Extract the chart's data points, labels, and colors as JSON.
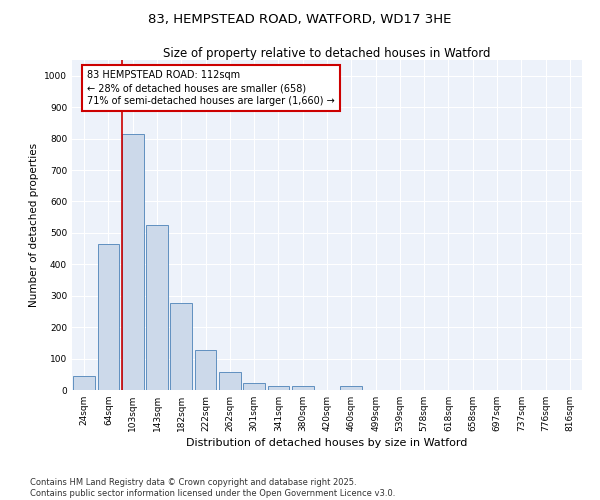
{
  "title": "83, HEMPSTEAD ROAD, WATFORD, WD17 3HE",
  "subtitle": "Size of property relative to detached houses in Watford",
  "xlabel": "Distribution of detached houses by size in Watford",
  "ylabel": "Number of detached properties",
  "bar_labels": [
    "24sqm",
    "64sqm",
    "103sqm",
    "143sqm",
    "182sqm",
    "222sqm",
    "262sqm",
    "301sqm",
    "341sqm",
    "380sqm",
    "420sqm",
    "460sqm",
    "499sqm",
    "539sqm",
    "578sqm",
    "618sqm",
    "658sqm",
    "697sqm",
    "737sqm",
    "776sqm",
    "816sqm"
  ],
  "bar_values": [
    46,
    465,
    815,
    525,
    278,
    127,
    57,
    22,
    14,
    14,
    0,
    12,
    0,
    0,
    0,
    0,
    0,
    0,
    0,
    0,
    0
  ],
  "bar_color": "#ccd9ea",
  "bar_edge_color": "#6090c0",
  "vline_color": "#cc0000",
  "annotation_line1": "83 HEMPSTEAD ROAD: 112sqm",
  "annotation_line2": "← 28% of detached houses are smaller (658)",
  "annotation_line3": "71% of semi-detached houses are larger (1,660) →",
  "annotation_box_color": "#cc0000",
  "ylim": [
    0,
    1050
  ],
  "yticks": [
    0,
    100,
    200,
    300,
    400,
    500,
    600,
    700,
    800,
    900,
    1000
  ],
  "background_color": "#edf2fa",
  "grid_color": "#ffffff",
  "footer_line1": "Contains HM Land Registry data © Crown copyright and database right 2025.",
  "footer_line2": "Contains public sector information licensed under the Open Government Licence v3.0.",
  "title_fontsize": 9.5,
  "subtitle_fontsize": 8.5,
  "xlabel_fontsize": 8,
  "ylabel_fontsize": 7.5,
  "tick_fontsize": 6.5,
  "annotation_fontsize": 7,
  "footer_fontsize": 6
}
